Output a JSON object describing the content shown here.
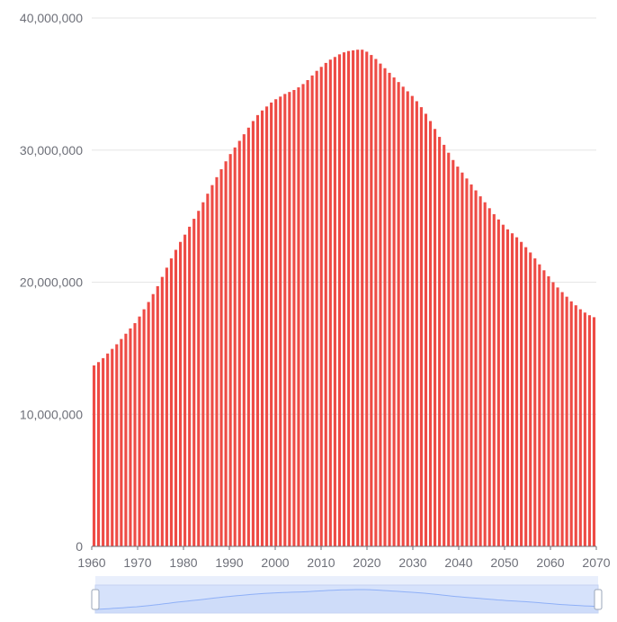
{
  "chart_data": {
    "type": "bar",
    "title": "",
    "xlabel": "",
    "ylabel": "",
    "x_ticks": [
      "1960",
      "1970",
      "1980",
      "1990",
      "2000",
      "2010",
      "2020",
      "2030",
      "2040",
      "2050",
      "2060",
      "2070"
    ],
    "y_ticks": [
      "0",
      "10,000,000",
      "20,000,000",
      "30,000,000",
      "40,000,000"
    ],
    "ylim": [
      0,
      40000000
    ],
    "xlim": [
      1960,
      2070
    ],
    "grid": true,
    "legend": "none",
    "categories": [
      1960,
      1961,
      1962,
      1963,
      1964,
      1965,
      1966,
      1967,
      1968,
      1969,
      1970,
      1971,
      1972,
      1973,
      1974,
      1975,
      1976,
      1977,
      1978,
      1979,
      1980,
      1981,
      1982,
      1983,
      1984,
      1985,
      1986,
      1987,
      1988,
      1989,
      1990,
      1991,
      1992,
      1993,
      1994,
      1995,
      1996,
      1997,
      1998,
      1999,
      2000,
      2001,
      2002,
      2003,
      2004,
      2005,
      2006,
      2007,
      2008,
      2009,
      2010,
      2011,
      2012,
      2013,
      2014,
      2015,
      2016,
      2017,
      2018,
      2019,
      2020,
      2021,
      2022,
      2023,
      2024,
      2025,
      2026,
      2027,
      2028,
      2029,
      2030,
      2031,
      2032,
      2033,
      2034,
      2035,
      2036,
      2037,
      2038,
      2039,
      2040,
      2041,
      2042,
      2043,
      2044,
      2045,
      2046,
      2047,
      2048,
      2049,
      2050,
      2051,
      2052,
      2053,
      2054,
      2055,
      2056,
      2057,
      2058,
      2059,
      2060,
      2061,
      2062,
      2063,
      2064,
      2065,
      2066,
      2067,
      2068,
      2069,
      2070
    ],
    "values": [
      13700000,
      13950000,
      14250000,
      14600000,
      14950000,
      15300000,
      15700000,
      16100000,
      16500000,
      16900000,
      17400000,
      17950000,
      18500000,
      19100000,
      19700000,
      20400000,
      21100000,
      21800000,
      22450000,
      23050000,
      23600000,
      24200000,
      24800000,
      25400000,
      26050000,
      26700000,
      27350000,
      27950000,
      28550000,
      29150000,
      29700000,
      30200000,
      30700000,
      31200000,
      31700000,
      32200000,
      32650000,
      33000000,
      33300000,
      33600000,
      33850000,
      34050000,
      34250000,
      34400000,
      34550000,
      34750000,
      35000000,
      35300000,
      35650000,
      36000000,
      36300000,
      36600000,
      36850000,
      37050000,
      37250000,
      37400000,
      37500000,
      37550000,
      37600000,
      37600000,
      37450000,
      37200000,
      36900000,
      36550000,
      36200000,
      35850000,
      35500000,
      35150000,
      34800000,
      34450000,
      34100000,
      33700000,
      33250000,
      32750000,
      32200000,
      31600000,
      31000000,
      30400000,
      29800000,
      29250000,
      28750000,
      28300000,
      27850000,
      27400000,
      26950000,
      26500000,
      26050000,
      25600000,
      25150000,
      24750000,
      24350000,
      24000000,
      23700000,
      23400000,
      23050000,
      22650000,
      22250000,
      21800000,
      21350000,
      20900000,
      20450000,
      20000000,
      19600000,
      19250000,
      18900000,
      18550000,
      18250000,
      17950000,
      17700000,
      17500000,
      17350000
    ],
    "bar_color": "#ee4b45",
    "grid_color": "#e6e6e6",
    "axis_color": "#6e7079",
    "data_zoom": {
      "range_start": 0,
      "range_end": 100,
      "fill_color": "#d6e2fb",
      "line_color": "#8fb0f7",
      "handle_color": "#ffffff"
    }
  }
}
